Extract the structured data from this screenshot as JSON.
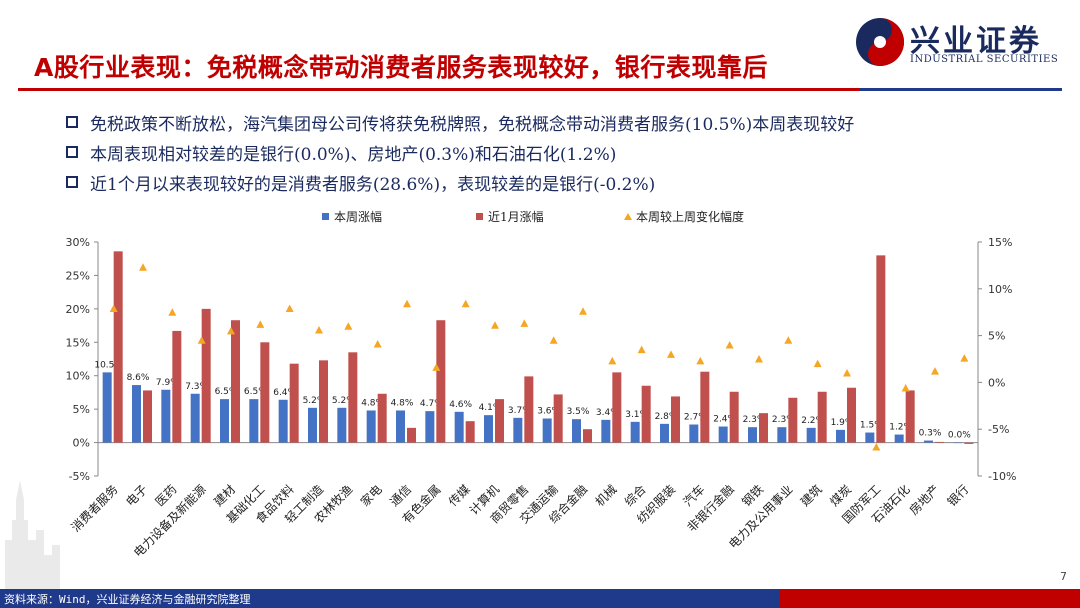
{
  "header": {
    "title": "A股行业表现：免税概念带动消费者服务表现较好，银行表现靠后",
    "logo_cn": "兴业证券",
    "logo_en": "INDUSTRIAL SECURITIES"
  },
  "bullets": [
    "免税政策不断放松，海汽集团母公司传将获免税牌照，免税概念带动消费者服务(10.5%)本周表现较好",
    "本周表现相对较差的是银行(0.0%)、房地产(0.3%)和石油石化(1.2%)",
    "近1个月以来表现较好的是消费者服务(28.6%)，表现较差的是银行(-0.2%)"
  ],
  "footer": {
    "source": "资料来源：Wind，兴业证券经济与金融研究院整理",
    "page": "7"
  },
  "colors": {
    "blue": "#4472c4",
    "red": "#c0504d",
    "orange": "#f5a623",
    "brand_red": "#c00000",
    "brand_blue": "#1f3a8a"
  },
  "chart_data": {
    "type": "bar",
    "categories": [
      "消费者服务",
      "电子",
      "医药",
      "电力设备及新能源",
      "建材",
      "基础化工",
      "食品饮料",
      "轻工制造",
      "农林牧渔",
      "家电",
      "通信",
      "有色金属",
      "传媒",
      "计算机",
      "商贸零售",
      "交通运输",
      "综合金融",
      "机械",
      "综合",
      "纺织服装",
      "汽车",
      "非银行金融",
      "钢铁",
      "电力及公用事业",
      "建筑",
      "煤炭",
      "国防军工",
      "石油石化",
      "房地产",
      "银行"
    ],
    "series": [
      {
        "name": "本周涨幅",
        "axis": "left",
        "values": [
          10.5,
          8.6,
          7.9,
          7.3,
          6.5,
          6.5,
          6.4,
          5.2,
          5.2,
          4.8,
          4.8,
          4.7,
          4.6,
          4.1,
          3.7,
          3.6,
          3.5,
          3.4,
          3.1,
          2.8,
          2.7,
          2.4,
          2.3,
          2.3,
          2.2,
          1.9,
          1.5,
          1.2,
          0.3,
          0.0
        ],
        "labels": [
          "10.5%",
          "8.6%",
          "7.9%",
          "7.3%",
          "6.5%",
          "6.5%",
          "6.4%",
          "5.2%",
          "5.2%",
          "4.8%",
          "4.8%",
          "4.7%",
          "4.6%",
          "4.1%",
          "3.7%",
          "3.6%",
          "3.5%",
          "3.4%",
          "3.1%",
          "2.8%",
          "2.7%",
          "2.4%",
          "2.3%",
          "2.3%",
          "2.2%",
          "1.9%",
          "1.5%",
          "1.2%",
          "0.3%",
          "0.0%"
        ]
      },
      {
        "name": "近1月涨幅",
        "axis": "left",
        "values": [
          28.6,
          7.8,
          16.7,
          20.0,
          18.3,
          15.0,
          11.8,
          12.3,
          13.5,
          7.3,
          2.2,
          18.3,
          3.2,
          6.5,
          9.9,
          7.2,
          2.0,
          10.5,
          8.5,
          6.9,
          10.6,
          7.6,
          4.4,
          6.7,
          7.6,
          8.2,
          28.0,
          7.8,
          0.1,
          -0.2
        ]
      },
      {
        "name": "本周较上周变化幅度",
        "axis": "right",
        "values": [
          7.9,
          12.3,
          7.5,
          4.5,
          5.5,
          6.2,
          7.9,
          5.6,
          6.0,
          4.1,
          8.4,
          1.6,
          8.4,
          6.1,
          6.3,
          4.5,
          7.6,
          2.3,
          3.5,
          3.0,
          2.3,
          4.0,
          2.5,
          4.5,
          2.0,
          1.0,
          -6.9,
          -0.6,
          1.2,
          2.6
        ]
      }
    ],
    "y_left": {
      "ylim": [
        -5,
        30
      ],
      "ticks": [
        -5,
        0,
        5,
        10,
        15,
        20,
        25,
        30
      ],
      "tick_labels": [
        "-5%",
        "0%",
        "5%",
        "10%",
        "15%",
        "20%",
        "25%",
        "30%"
      ]
    },
    "y_right": {
      "ylim": [
        -10,
        15
      ],
      "ticks": [
        -10,
        -5,
        0,
        5,
        10,
        15
      ],
      "tick_labels": [
        "-10%",
        "-5%",
        "0%",
        "5%",
        "10%",
        "15%"
      ]
    },
    "legend_position": "top",
    "grid": false
  }
}
